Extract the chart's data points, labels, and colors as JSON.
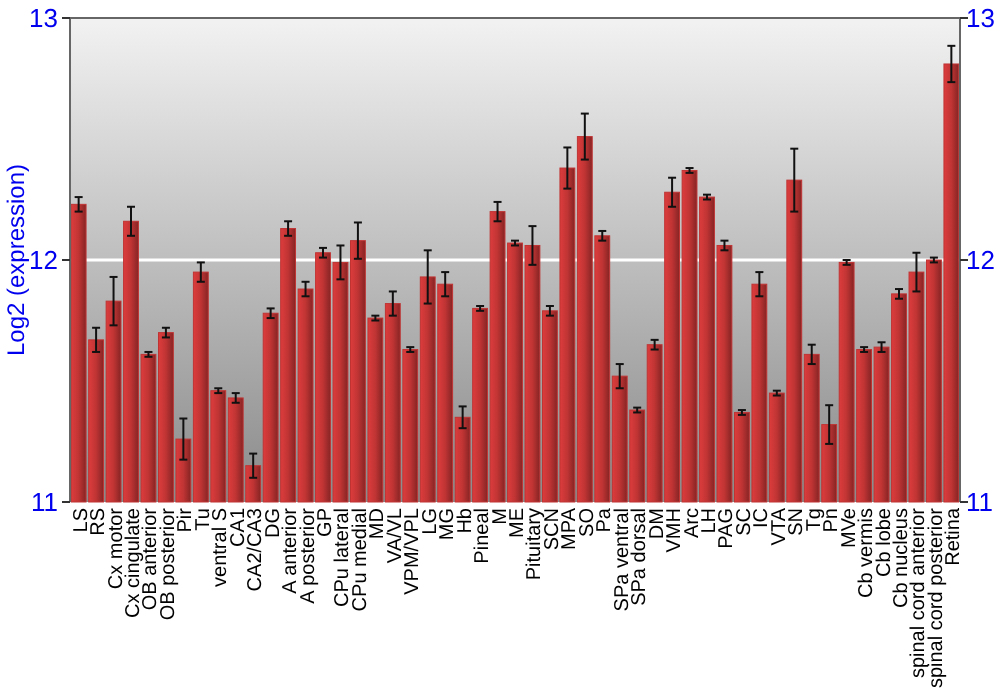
{
  "chart_data": {
    "type": "bar",
    "ylabel": "Log2 (expression)",
    "categories": [
      "LS",
      "RS",
      "Cx motor",
      "Cx cingulate",
      "OB anterior",
      "OB posterior",
      "Pir",
      "Tu",
      "ventral S",
      "CA1",
      "CA2/CA3",
      "DG",
      "A anterior",
      "A posterior",
      "GP",
      "CPu lateral",
      "CPu medial",
      "MD",
      "VA/VL",
      "VPM/VPL",
      "LG",
      "MG",
      "Hb",
      "Pineal",
      "M",
      "ME",
      "Pituitary",
      "SCN",
      "MPA",
      "SO",
      "Pa",
      "SPa ventral",
      "SPa dorsal",
      "DM",
      "VMH",
      "Arc",
      "LH",
      "PAG",
      "SC",
      "IC",
      "VTA",
      "SN",
      "Tg",
      "Pn",
      "MVe",
      "Cb vermis",
      "Cb lobe",
      "Cb nucleus",
      "spinal cord anterior",
      "spinal cord posterior",
      "Retina"
    ],
    "values": [
      12.23,
      11.67,
      11.83,
      12.16,
      11.61,
      11.7,
      11.26,
      11.95,
      11.46,
      11.43,
      11.15,
      11.78,
      12.13,
      11.88,
      12.03,
      11.99,
      12.08,
      11.76,
      11.82,
      11.63,
      11.93,
      11.9,
      11.35,
      11.8,
      12.2,
      12.07,
      12.06,
      11.79,
      12.38,
      12.51,
      12.1,
      11.52,
      11.38,
      11.65,
      12.28,
      12.37,
      12.26,
      12.06,
      11.37,
      11.9,
      11.45,
      12.33,
      11.61,
      11.32,
      11.99,
      11.63,
      11.64,
      11.86,
      11.95,
      12.0,
      12.81
    ],
    "errors": [
      0.03,
      0.05,
      0.1,
      0.06,
      0.01,
      0.02,
      0.085,
      0.04,
      0.01,
      0.02,
      0.05,
      0.02,
      0.03,
      0.03,
      0.02,
      0.07,
      0.075,
      0.01,
      0.05,
      0.01,
      0.11,
      0.05,
      0.045,
      0.01,
      0.04,
      0.01,
      0.08,
      0.02,
      0.085,
      0.095,
      0.02,
      0.05,
      0.01,
      0.02,
      0.06,
      0.01,
      0.01,
      0.02,
      0.01,
      0.05,
      0.01,
      0.13,
      0.04,
      0.08,
      0.01,
      0.01,
      0.02,
      0.02,
      0.08,
      0.01,
      0.075
    ],
    "color": "#c03434",
    "ylim": [
      11,
      13
    ],
    "yticks": [
      11,
      12,
      13
    ],
    "y2lim": [
      11,
      13
    ],
    "y2ticks": [
      11,
      12,
      13
    ],
    "grid": "y"
  }
}
